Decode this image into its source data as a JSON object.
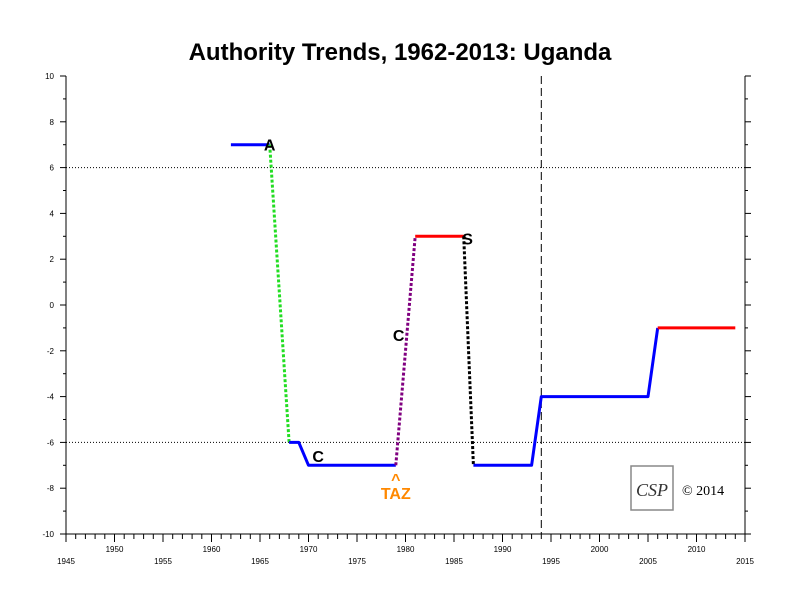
{
  "chart_data": {
    "type": "line",
    "title": "Authority Trends, 1962-2013: Uganda",
    "xlim": [
      1945,
      2015
    ],
    "ylim": [
      -10,
      10
    ],
    "x_tick_labels": [
      1945,
      1950,
      1955,
      1960,
      1965,
      1970,
      1975,
      1980,
      1985,
      1990,
      1995,
      2000,
      2005,
      2010,
      2015
    ],
    "y_tick_labels": [
      10,
      8,
      6,
      4,
      2,
      0,
      -2,
      -4,
      -6,
      -8,
      -10
    ],
    "reference_lines": {
      "horizontal_dotted": [
        6,
        -6
      ],
      "vertical_dashed": [
        1994
      ]
    },
    "series": [
      {
        "style": "solid",
        "color": "#0000ff",
        "x": [
          1962,
          1966
        ],
        "y": [
          7,
          7
        ]
      },
      {
        "style": "dotted",
        "color": "#22dd22",
        "x": [
          1966,
          1968
        ],
        "y": [
          7,
          -6
        ]
      },
      {
        "style": "solid",
        "color": "#0000ff",
        "x": [
          1968,
          1969,
          1970,
          1979
        ],
        "y": [
          -6,
          -6,
          -7,
          -7
        ]
      },
      {
        "style": "dotted",
        "color": "#800080",
        "x": [
          1979,
          1981
        ],
        "y": [
          -7,
          3
        ]
      },
      {
        "style": "solid",
        "color": "#ff0000",
        "x": [
          1981,
          1986
        ],
        "y": [
          3,
          3
        ]
      },
      {
        "style": "dotted",
        "color": "#000000",
        "x": [
          1986,
          1987
        ],
        "y": [
          3,
          -7
        ]
      },
      {
        "style": "solid",
        "color": "#0000ff",
        "x": [
          1987,
          1993,
          1994,
          2005,
          2006
        ],
        "y": [
          -7,
          -7,
          -4,
          -4,
          -1
        ]
      },
      {
        "style": "solid",
        "color": "#ff0000",
        "x": [
          2006,
          2014
        ],
        "y": [
          -1,
          -1
        ]
      }
    ],
    "annotations": [
      {
        "text": "A",
        "x": 1966,
        "y": 7,
        "color": "#000000"
      },
      {
        "text": "C",
        "x": 1971,
        "y": -6.6,
        "color": "#000000"
      },
      {
        "text": "C",
        "x": 1979.3,
        "y": -1.3,
        "color": "#000000"
      },
      {
        "text": "S",
        "x": 1986.4,
        "y": 2.9,
        "color": "#000000"
      },
      {
        "text": "^",
        "x": 1979,
        "y": -7.5,
        "color": "#ff8800",
        "size": "small"
      },
      {
        "text": "TAZ",
        "x": 1979,
        "y": -8.2,
        "color": "#ff8800"
      }
    ],
    "logo_text": "CSP",
    "copyright": "© 2014"
  }
}
